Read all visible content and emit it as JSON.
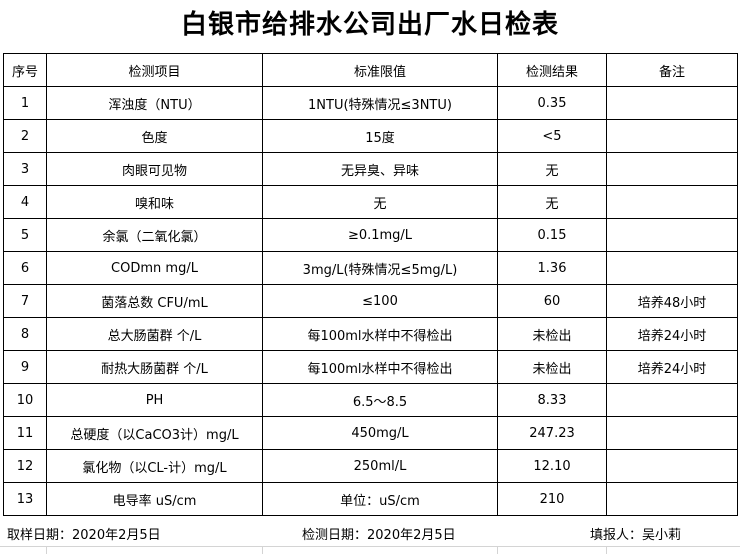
{
  "title": "白银市给排水公司出厂水日检表",
  "headers": [
    "序号",
    "检测项目",
    "标准限值",
    "检测结果",
    "备注"
  ],
  "rows": [
    [
      "1",
      "浑浊度（NTU）",
      "1NTU(特殊情况≤3NTU)",
      "0.35",
      ""
    ],
    [
      "2",
      "色度",
      "15度",
      "<5",
      ""
    ],
    [
      "3",
      "肉眼可见物",
      "无异臭、异味",
      "无",
      ""
    ],
    [
      "4",
      "嗅和味",
      "无",
      "无",
      ""
    ],
    [
      "5",
      "余氯（二氧化氯）",
      "≥0.1mg/L",
      "0.15",
      ""
    ],
    [
      "6",
      "CODmn mg/L",
      "3mg/L(特殊情况≤5mg/L)",
      "1.36",
      ""
    ],
    [
      "7",
      "菌落总数  CFU/mL",
      "≤100",
      "60",
      "培养48小时"
    ],
    [
      "8",
      "总大肠菌群 个/L",
      "每100ml水样中不得检出",
      "未检出",
      "培养24小时"
    ],
    [
      "9",
      "耐热大肠菌群 个/L",
      "每100ml水样中不得检出",
      "未检出",
      "培养24小时"
    ],
    [
      "10",
      "PH",
      "6.5～8.5",
      "8.33",
      ""
    ],
    [
      "11",
      "总硬度（以CaCO3计）mg/L",
      "450mg/L",
      "247.23",
      ""
    ],
    [
      "12",
      "氯化物（以CL-计）mg/L",
      "250ml/L",
      "12.10",
      ""
    ],
    [
      "13",
      "电导率 uS/cm",
      "单位：uS/cm",
      "210",
      ""
    ]
  ],
  "footer": {
    "sampling_date": "取样日期：2020年2月5日",
    "test_date": "检测日期：2020年2月5日",
    "reporter": "填报人：吴小莉"
  }
}
